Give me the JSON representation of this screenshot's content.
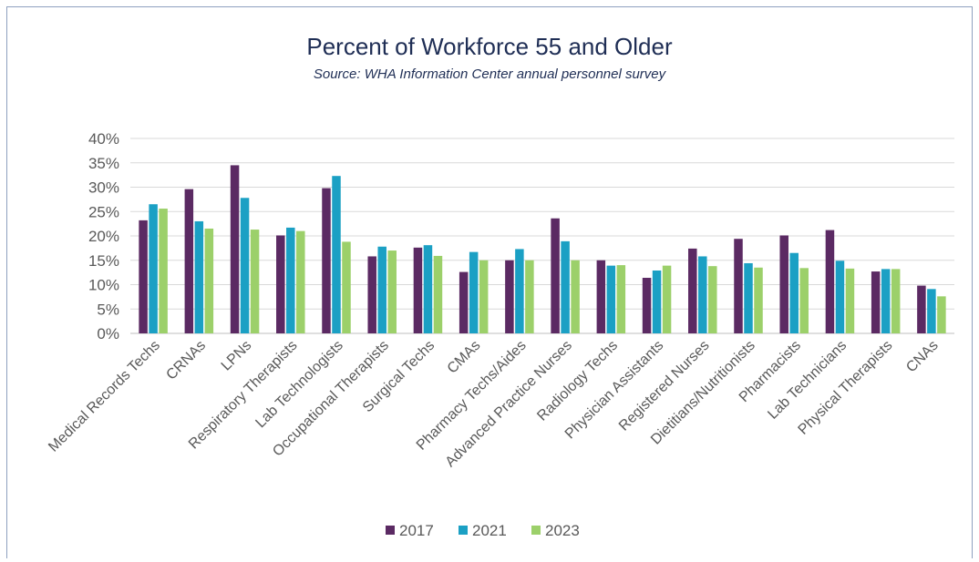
{
  "chart_data": {
    "type": "bar",
    "title": "Percent of Workforce 55 and Older",
    "subtitle": "Source: WHA Information Center annual personnel survey",
    "xlabel": "",
    "ylabel": "",
    "ylim": [
      0,
      40
    ],
    "yticks": [
      "0%",
      "5%",
      "10%",
      "15%",
      "20%",
      "25%",
      "30%",
      "35%",
      "40%"
    ],
    "grid": true,
    "legend_position": "bottom",
    "categories": [
      "Medical Records Techs",
      "CRNAs",
      "LPNs",
      "Respiratory Therapists",
      "Lab Technologists",
      "Occupational Therapists",
      "Surgical Techs",
      "CMAs",
      "Pharmacy Techs/Aides",
      "Advanced Practice Nurses",
      "Radiology Techs",
      "Physician Assistants",
      "Registered Nurses",
      "Dietitians/Nutritionists",
      "Pharmacists",
      "Lab Technicians",
      "Physical Therapists",
      "CNAs"
    ],
    "series": [
      {
        "name": "2017",
        "color": "#5b2a63",
        "values": [
          23.2,
          29.6,
          34.5,
          20.1,
          29.8,
          15.8,
          17.6,
          12.6,
          15.0,
          23.6,
          15.0,
          11.4,
          17.4,
          19.4,
          20.1,
          21.2,
          12.7,
          9.8
        ]
      },
      {
        "name": "2021",
        "color": "#1ba0c4",
        "values": [
          26.5,
          23.0,
          27.8,
          21.7,
          32.3,
          17.8,
          18.1,
          16.7,
          17.3,
          18.9,
          13.9,
          12.9,
          15.8,
          14.4,
          16.5,
          14.9,
          13.2,
          9.1
        ]
      },
      {
        "name": "2023",
        "color": "#9cd06a",
        "values": [
          25.6,
          21.5,
          21.3,
          21.0,
          18.8,
          17.0,
          15.9,
          15.0,
          15.0,
          15.0,
          14.0,
          13.9,
          13.8,
          13.5,
          13.4,
          13.3,
          13.2,
          7.6
        ]
      }
    ]
  }
}
